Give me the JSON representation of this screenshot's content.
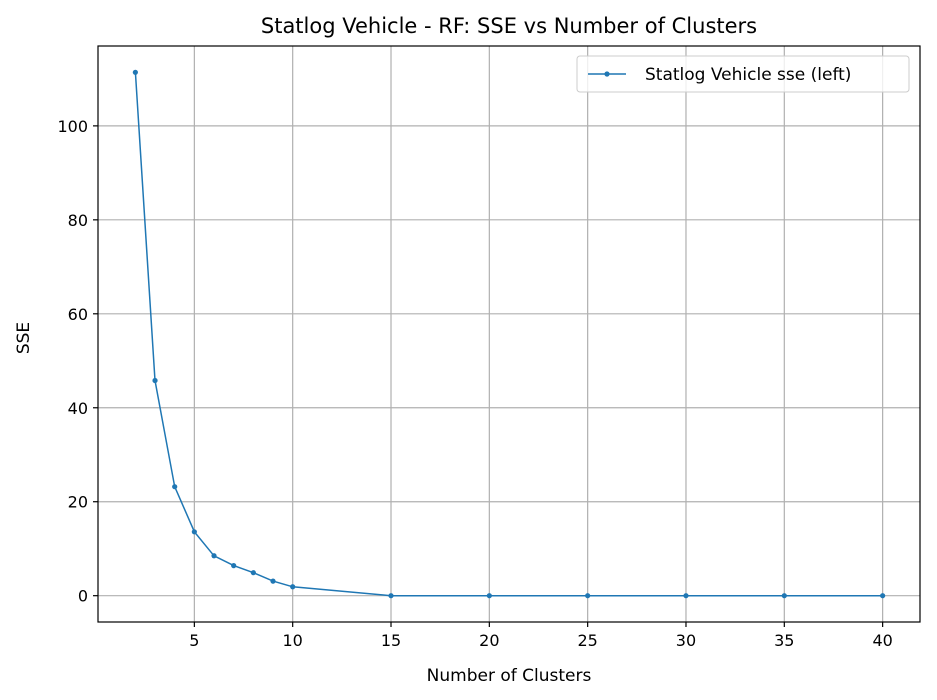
{
  "chart_data": {
    "type": "line",
    "title": "Statlog Vehicle - RF: SSE vs Number of Clusters",
    "xlabel": "Number of Clusters",
    "ylabel": "SSE",
    "xlim": [
      0.1,
      41.9
    ],
    "ylim": [
      -5.6,
      117.0
    ],
    "xticks": [
      5,
      10,
      15,
      20,
      25,
      30,
      35,
      40
    ],
    "yticks": [
      0,
      20,
      40,
      60,
      80,
      100
    ],
    "grid": true,
    "legend_position": "top-right",
    "series": [
      {
        "name": "Statlog Vehicle sse (left)",
        "color": "#1f77b4",
        "marker": "circle",
        "x": [
          2,
          3,
          4,
          5,
          6,
          7,
          8,
          9,
          10,
          15,
          20,
          25,
          30,
          35,
          40
        ],
        "y": [
          111.4,
          45.8,
          23.2,
          13.6,
          8.5,
          6.4,
          4.9,
          3.1,
          1.9,
          0.0,
          0.0,
          0.0,
          0.0,
          0.0,
          0.0
        ]
      }
    ]
  }
}
